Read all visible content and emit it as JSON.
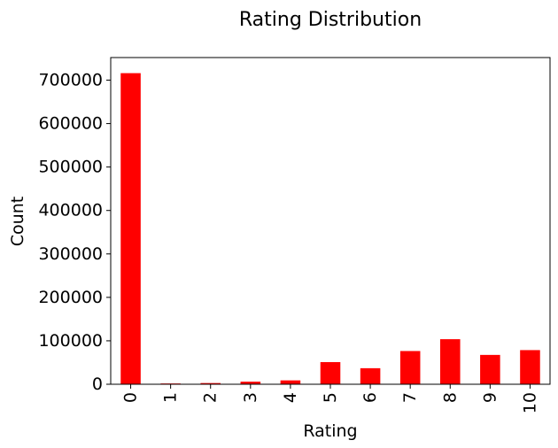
{
  "chart_data": {
    "type": "bar",
    "title": "Rating Distribution",
    "xlabel": "Rating",
    "ylabel": "Count",
    "categories": [
      "0",
      "1",
      "2",
      "3",
      "4",
      "5",
      "6",
      "7",
      "8",
      "9",
      "10"
    ],
    "values": [
      716100,
      1770,
      2760,
      5996,
      8904,
      50974,
      36924,
      76457,
      103736,
      67541,
      78610
    ],
    "ylim": [
      0,
      752000
    ],
    "yticks": [
      0,
      100000,
      200000,
      300000,
      400000,
      500000,
      600000,
      700000
    ],
    "ytick_labels": [
      "0",
      "100000",
      "200000",
      "300000",
      "400000",
      "500000",
      "600000",
      "700000"
    ],
    "bar_color": "#ff0000",
    "grid": false,
    "legend": "none",
    "xtick_rotation": "vertical"
  }
}
